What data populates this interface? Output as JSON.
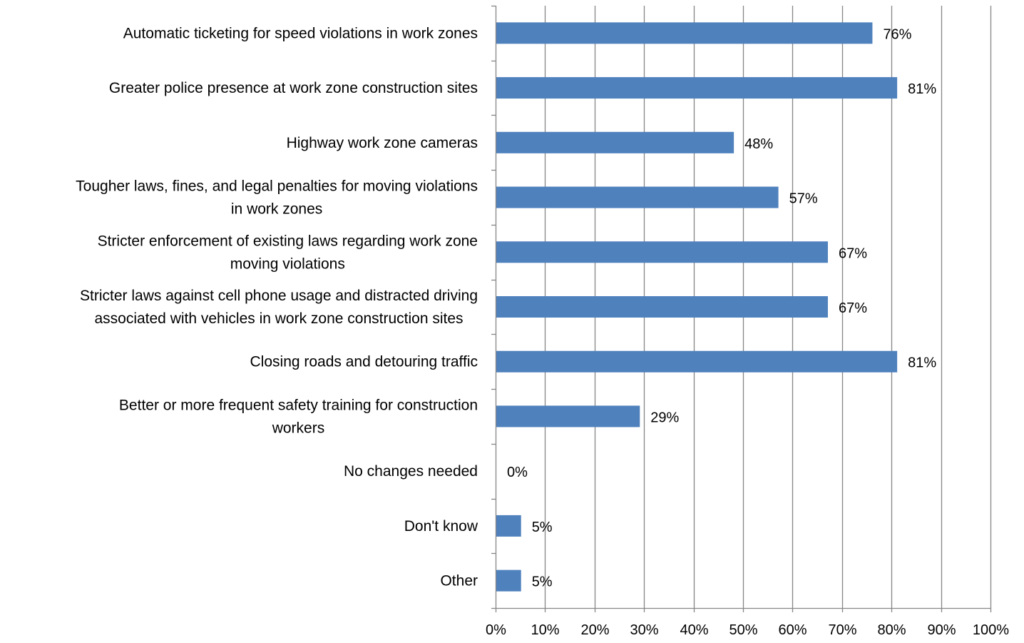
{
  "chart_data": {
    "type": "bar",
    "orientation": "horizontal",
    "categories": [
      [
        "Automatic ticketing for speed violations in work zones"
      ],
      [
        "Greater police presence at work zone construction sites"
      ],
      [
        "Highway work zone cameras"
      ],
      [
        "Tougher laws, fines, and legal penalties for moving violations",
        "in work zones"
      ],
      [
        "Stricter enforcement of existing laws regarding work zone",
        "moving violations"
      ],
      [
        "Stricter laws against cell phone usage and distracted driving",
        "associated with vehicles in work zone construction sites"
      ],
      [
        "Closing roads and detouring traffic"
      ],
      [
        "Better or more frequent safety training for construction",
        "workers"
      ],
      [
        "No changes needed"
      ],
      [
        "Don't know"
      ],
      [
        "Other"
      ]
    ],
    "values": [
      76,
      81,
      48,
      57,
      67,
      67,
      81,
      29,
      0,
      5,
      5
    ],
    "data_labels": [
      "76%",
      "81%",
      "48%",
      "57%",
      "67%",
      "67%",
      "81%",
      "29%",
      "0%",
      "5%",
      "5%"
    ],
    "xlim": [
      0,
      100
    ],
    "x_ticks": [
      "0%",
      "10%",
      "20%",
      "30%",
      "40%",
      "50%",
      "60%",
      "70%",
      "80%",
      "90%",
      "100%"
    ],
    "grid": "vertical",
    "legend": "none",
    "bar_color": "#4f81bd",
    "grid_color": "#868686",
    "axis_color": "#868686"
  }
}
